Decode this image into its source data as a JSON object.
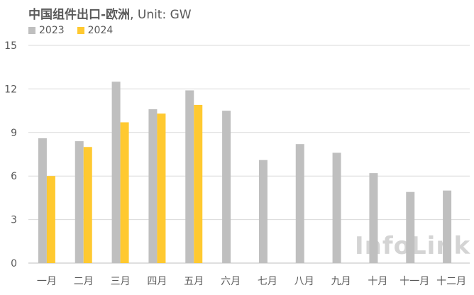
{
  "chart_data": {
    "type": "bar",
    "title_main": "中国组件出口-欧洲",
    "title_suffix": ", Unit: GW",
    "categories": [
      "一月",
      "二月",
      "三月",
      "四月",
      "五月",
      "六月",
      "七月",
      "八月",
      "九月",
      "十月",
      "十一月",
      "十二月"
    ],
    "series": [
      {
        "name": "2023",
        "color": "#bfbfbf",
        "values": [
          8.6,
          8.4,
          12.5,
          10.6,
          11.9,
          10.5,
          7.1,
          8.2,
          7.6,
          6.2,
          4.9,
          5.0
        ]
      },
      {
        "name": "2024",
        "color": "#ffc930",
        "values": [
          6.0,
          8.0,
          9.7,
          10.3,
          10.9,
          null,
          null,
          null,
          null,
          null,
          null,
          null
        ]
      }
    ],
    "ylim": [
      0,
      15
    ],
    "yticks": [
      "0",
      "3",
      "6",
      "9",
      "12",
      "15"
    ],
    "grid": true,
    "legend_position": "top-left"
  },
  "watermark": "InfoLink"
}
